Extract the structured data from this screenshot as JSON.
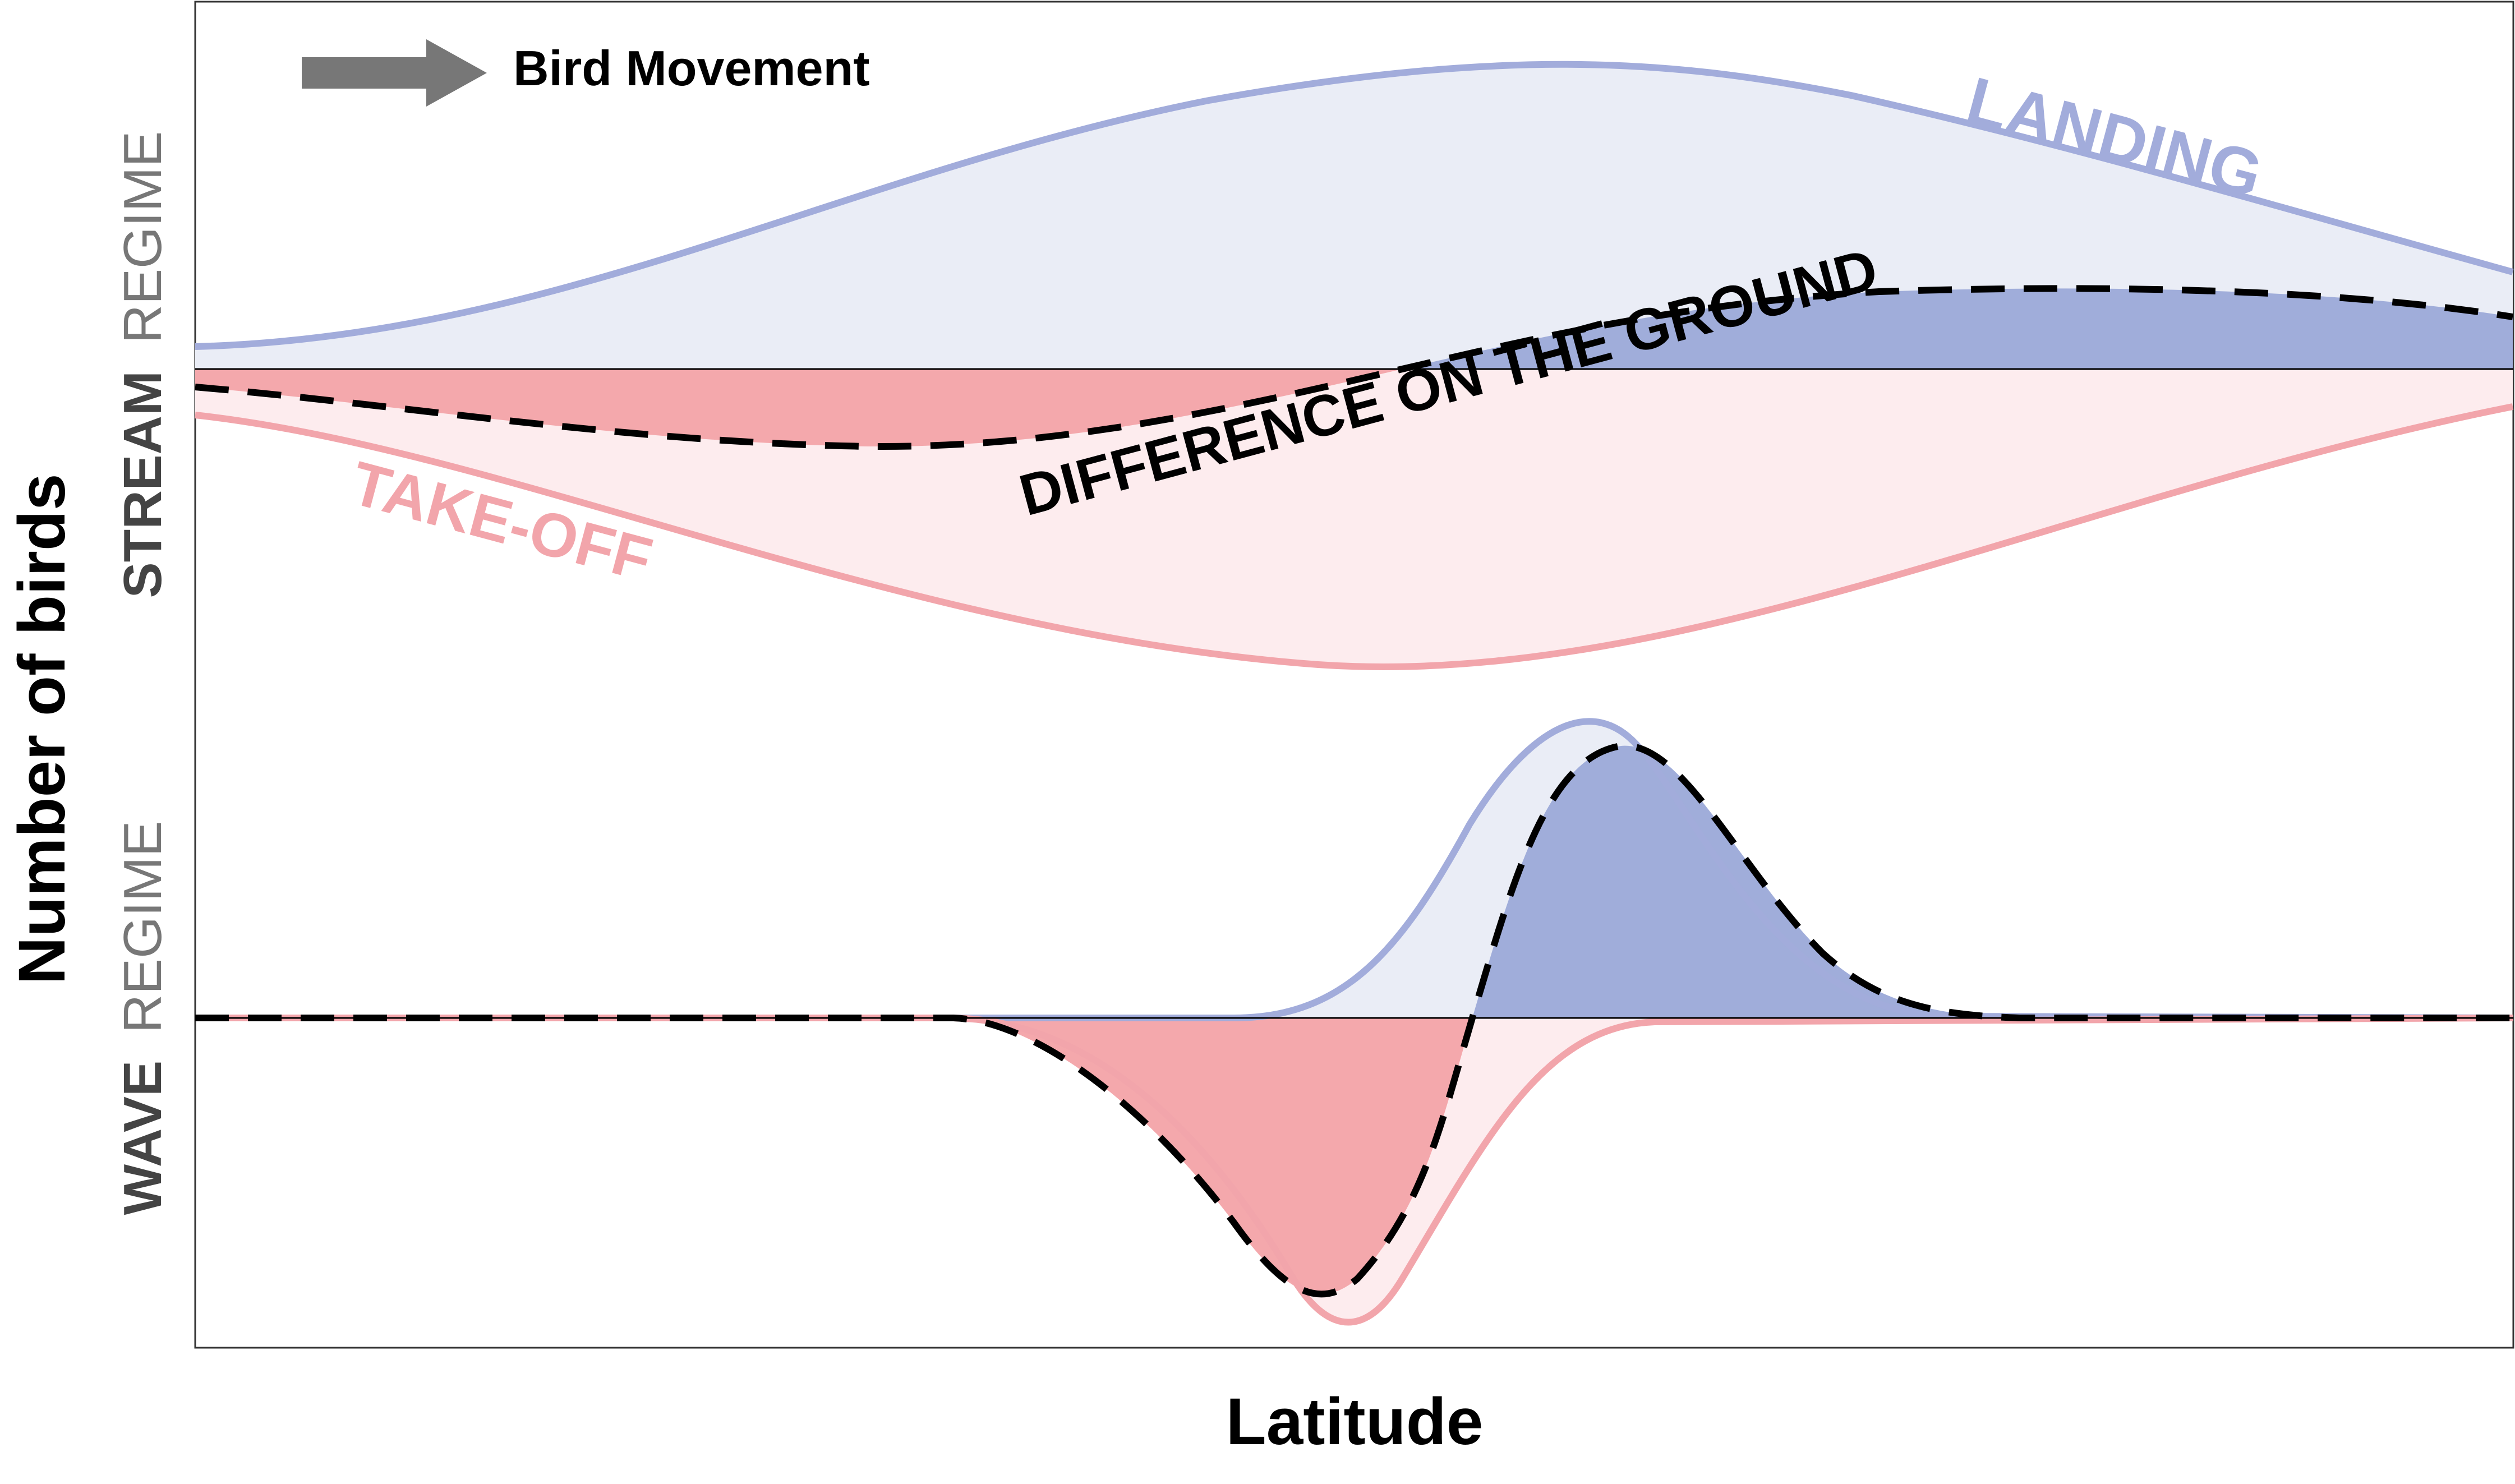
{
  "figure": {
    "legend_label": "Bird Movement",
    "y_axis_label": "Number of birds",
    "x_axis_label": "Latitude",
    "stream_label": {
      "bold": "STREAM",
      "light": "REGIME"
    },
    "wave_label": {
      "bold": "WAVE",
      "light": "REGIME"
    },
    "landing_label": "LANDING",
    "takeoff_label": "TAKE-OFF",
    "difference_label": "DIFFERENCE ON THE GROUND",
    "icons": {
      "arrow": "right-arrow-icon"
    }
  },
  "colors": {
    "landing_line": "#A2ACDB",
    "landing_fill_light": "#EAEDF6",
    "landing_fill_dark": "#A0ADDA",
    "takeoff_line": "#F2A5AB",
    "takeoff_fill_light": "#FDECEE",
    "takeoff_fill_dark": "#F4A8AC",
    "difference_line": "#000000",
    "arrow": "#777777",
    "regime_light_text": "#777777",
    "regime_bold_text": "#444444"
  }
}
